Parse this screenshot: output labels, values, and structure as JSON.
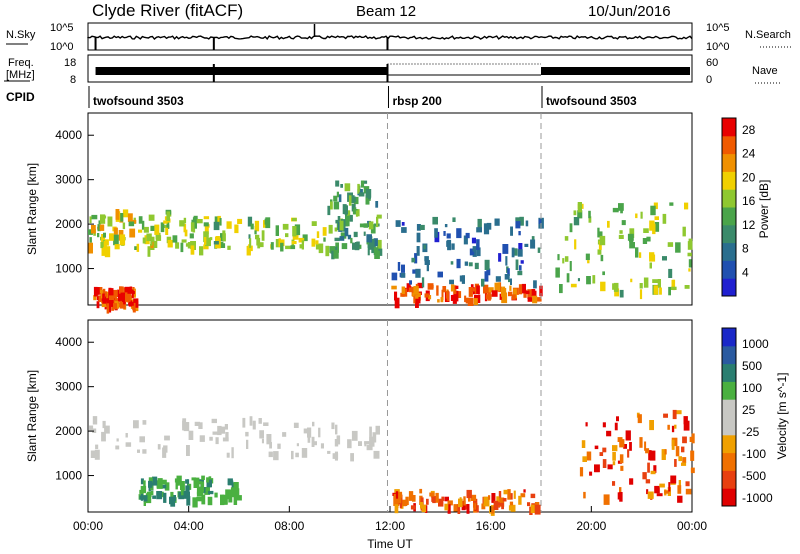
{
  "header": {
    "station": "Clyde River (fitACF)",
    "beam": "Beam 12",
    "date": "10/Jun/2016"
  },
  "noise_panel": {
    "left_label": "N.Sky",
    "right_label": "N.Search",
    "ticks_left": [
      "10^5",
      "10^0"
    ],
    "ticks_right": [
      "10^5",
      "10^0"
    ]
  },
  "freq_panel": {
    "left_label_1": "Freq.",
    "left_label_2": "[MHz]",
    "ticks_left": [
      "18",
      "8"
    ],
    "ticks_right": [
      "60",
      "0"
    ],
    "right_label": "Nave"
  },
  "cpid": {
    "label": "CPID",
    "segments": [
      {
        "name": "twofsound 3503",
        "start_h": 0,
        "end_h": 11.9
      },
      {
        "name": "rbsp 200",
        "start_h": 11.9,
        "end_h": 18.0
      },
      {
        "name": "twofsound 3503",
        "start_h": 18.0,
        "end_h": 24
      }
    ]
  },
  "colors": {
    "power_scale": [
      "#2020d0",
      "#2050b0",
      "#2a6e8e",
      "#3a8a6a",
      "#4aa44a",
      "#8fc830",
      "#f0d000",
      "#f09000",
      "#f05a00",
      "#e80000"
    ],
    "velocity_scale": [
      "#1a28c8",
      "#2a5aa0",
      "#2a7e70",
      "#4ab040",
      "#c8c8c4",
      "#c8c8c4",
      "#f0a000",
      "#f07000",
      "#e84010",
      "#e00000"
    ],
    "ground_scatter": "#c8c8c4"
  },
  "chart_data": [
    {
      "type": "heatmap",
      "title": "",
      "xlabel": "Time UT",
      "ylabel": "Slant Range [km]",
      "xlim": [
        0,
        24
      ],
      "ylim": [
        180,
        4500
      ],
      "x_ticks": [
        "00:00",
        "04:00",
        "08:00",
        "12:00",
        "16:00",
        "20:00",
        "00:00"
      ],
      "y_ticks": [
        "1000",
        "2000",
        "3000",
        "4000"
      ],
      "colorbar_label": "Power [dB]",
      "colorbar_ticks": [
        "4",
        "8",
        "12",
        "16",
        "20",
        "24",
        "28"
      ],
      "colorbar_range": [
        0,
        30
      ],
      "echo_regions": [
        {
          "t0": 0.0,
          "t1": 4.0,
          "r0": 1500,
          "r1": 2350,
          "level": 18
        },
        {
          "t0": 4.0,
          "t1": 9.5,
          "r0": 1500,
          "r1": 2200,
          "level": 16
        },
        {
          "t0": 9.5,
          "t1": 11.5,
          "r0": 1400,
          "r1": 3000,
          "level": 12
        },
        {
          "t0": 0.2,
          "t1": 1.8,
          "r0": 200,
          "r1": 600,
          "level": 28
        },
        {
          "t0": 12.0,
          "t1": 18.0,
          "r0": 300,
          "r1": 700,
          "level": 28
        },
        {
          "t0": 12.0,
          "t1": 18.0,
          "r0": 700,
          "r1": 2200,
          "level": 6
        },
        {
          "t0": 18.5,
          "t1": 24.0,
          "r0": 500,
          "r1": 2500,
          "level": 16
        }
      ]
    },
    {
      "type": "heatmap",
      "title": "",
      "xlabel": "Time UT",
      "ylabel": "Slant Range [km]",
      "xlim": [
        0,
        24
      ],
      "ylim": [
        180,
        4500
      ],
      "x_ticks": [
        "00:00",
        "04:00",
        "08:00",
        "12:00",
        "16:00",
        "20:00",
        "00:00"
      ],
      "y_ticks": [
        "1000",
        "2000",
        "3000",
        "4000"
      ],
      "colorbar_label": "Velocity [m s^-1]",
      "colorbar_ticks": [
        "1000",
        "500",
        "100",
        "25",
        "-25",
        "-100",
        "-500",
        "-1000"
      ],
      "echo_regions": [
        {
          "t0": 0.0,
          "t1": 11.5,
          "r0": 1500,
          "r1": 2350,
          "velocity": 0
        },
        {
          "t0": 12.0,
          "t1": 18.0,
          "r0": 300,
          "r1": 700,
          "velocity": -150
        },
        {
          "t0": 19.5,
          "t1": 24.0,
          "r0": 500,
          "r1": 2500,
          "velocity": -700
        },
        {
          "t0": 2.0,
          "t1": 6.0,
          "r0": 500,
          "r1": 1000,
          "velocity": 150
        }
      ]
    }
  ]
}
